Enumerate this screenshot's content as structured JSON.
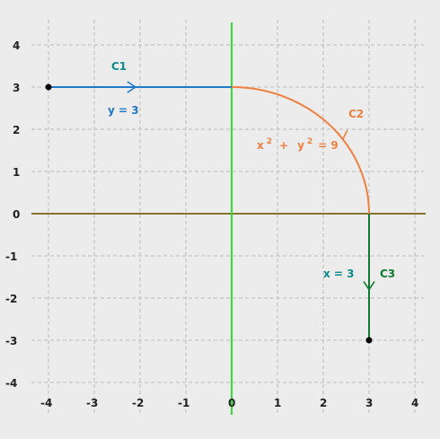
{
  "axes": {
    "x_ticks": [
      "-4",
      "-3",
      "-2",
      "-1",
      "0",
      "1",
      "2",
      "3",
      "4"
    ],
    "y_ticks": [
      "4",
      "3",
      "2",
      "1",
      "0",
      "-1",
      "-2",
      "-3",
      "-4"
    ],
    "xlim": [
      -4.3,
      4.3
    ],
    "ylim": [
      -4.3,
      4.3
    ],
    "grid": true,
    "grid_style": "dashed"
  },
  "curves": {
    "c1": {
      "name": "C1",
      "equation": "y = 3",
      "color": "#1f78c8",
      "label_color": "#0b8a8a",
      "from": [
        -4,
        3
      ],
      "to": [
        0,
        3
      ]
    },
    "c2": {
      "name": "C2",
      "equation": {
        "x": "x",
        "exp1": "2",
        "plus": "+",
        "y": "y",
        "exp2": "2",
        "eq": "= 9"
      },
      "color": "#f08040",
      "center": [
        0,
        0
      ],
      "radius": 3
    },
    "c3": {
      "name": "C3",
      "equation": "x = 3",
      "color": "#107a30",
      "label_color": "#0b8a8a",
      "from": [
        3,
        0
      ],
      "to": [
        3,
        -3
      ]
    }
  },
  "colors": {
    "background": "#ececec",
    "grid": "#bbbbbb",
    "y_axis": "#33dd33",
    "x_axis": "#a0522d",
    "green_axis_line": "#33dd33",
    "endpoint": "#000000"
  }
}
